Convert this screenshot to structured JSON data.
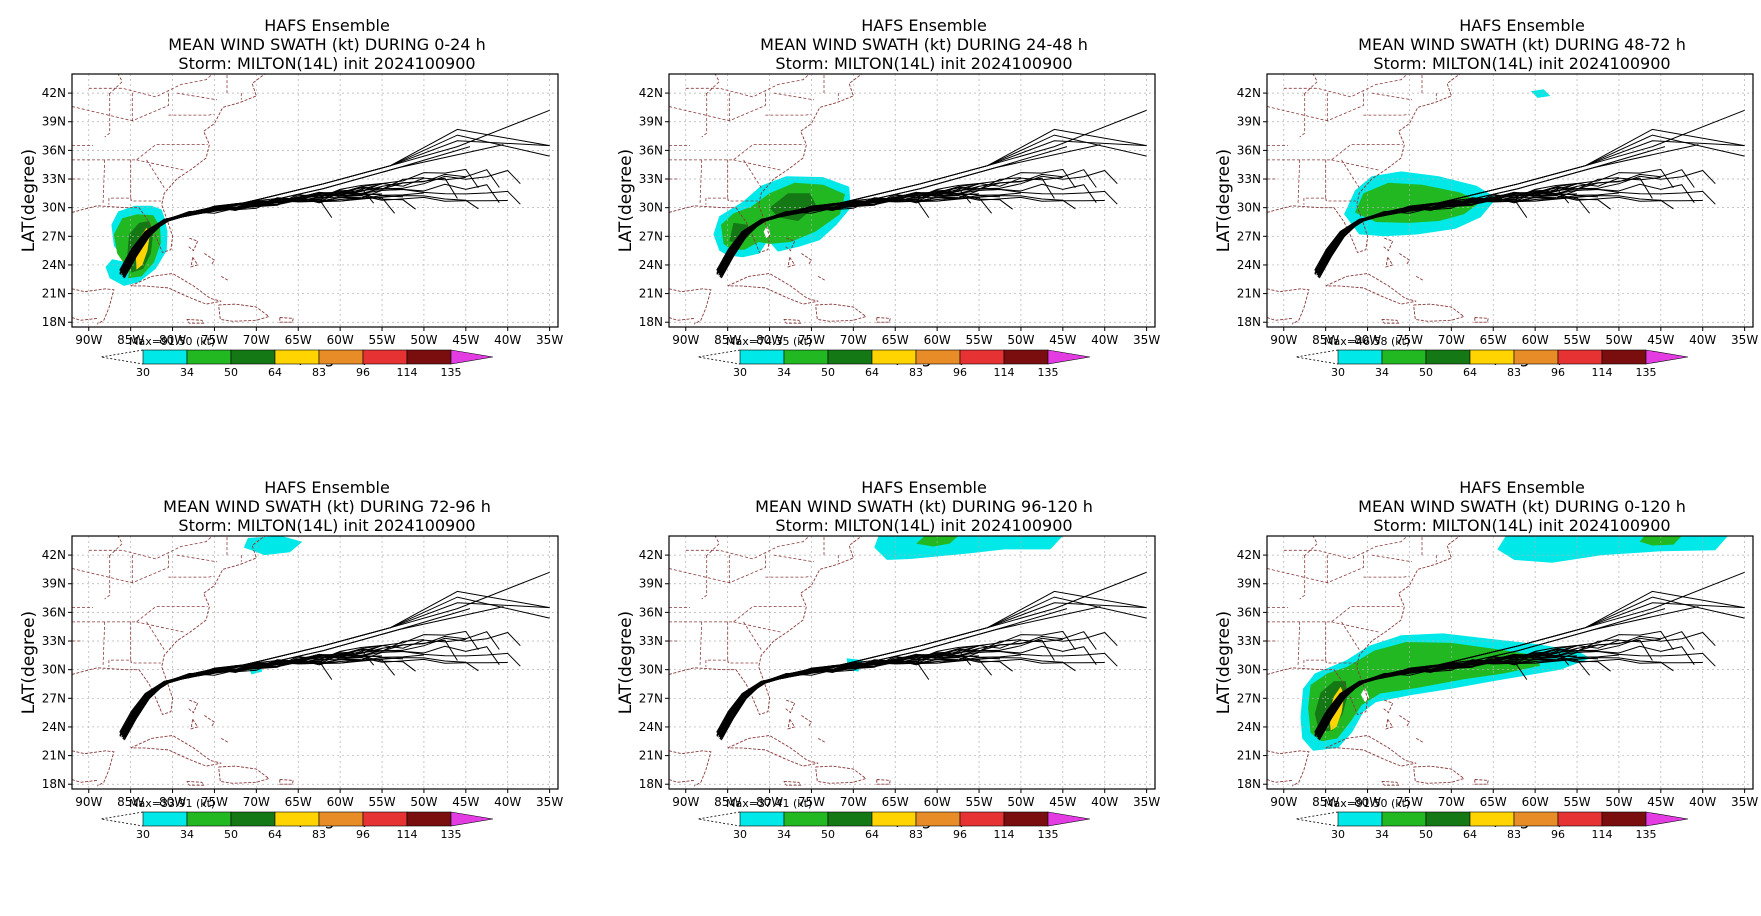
{
  "panel_title_line1": "HAFS Ensemble",
  "storm_line": "Storm: MILTON(14L) init 2024100900",
  "xlabel": "LON(degree)",
  "ylabel": "LAT(degree)",
  "lon_ticks": [
    "90W",
    "85W",
    "80W",
    "75W",
    "70W",
    "65W",
    "60W",
    "55W",
    "50W",
    "45W",
    "40W",
    "35W"
  ],
  "lat_ticks": [
    "42N",
    "39N",
    "36N",
    "33N",
    "30N",
    "27N",
    "24N",
    "21N",
    "18N"
  ],
  "colorbar": {
    "levels": [
      "30",
      "34",
      "50",
      "64",
      "83",
      "96",
      "114",
      "135"
    ],
    "colors": [
      "#00e8e8",
      "#22b822",
      "#147814",
      "#ffd400",
      "#e88c28",
      "#e63232",
      "#7a0e0e",
      "#e23ce2"
    ]
  },
  "panels": [
    {
      "title": "MEAN WIND SWATH (kt) DURING  0-24 h",
      "max": "Max=91.50 (kt)"
    },
    {
      "title": "MEAN WIND SWATH (kt) DURING 24-48 h",
      "max": "Max=74.35 (kt)"
    },
    {
      "title": "MEAN WIND SWATH (kt) DURING 48-72 h",
      "max": "Max=46.58 (kt)"
    },
    {
      "title": "MEAN WIND SWATH (kt) DURING 72-96 h",
      "max": "Max=33.91 (kt)"
    },
    {
      "title": "MEAN WIND SWATH (kt) DURING 96-120 h",
      "max": "Max=37.41 (kt)"
    },
    {
      "title": "MEAN WIND SWATH (kt) DURING 0-120 h",
      "max": "Max=91.50 (kt)"
    }
  ]
}
